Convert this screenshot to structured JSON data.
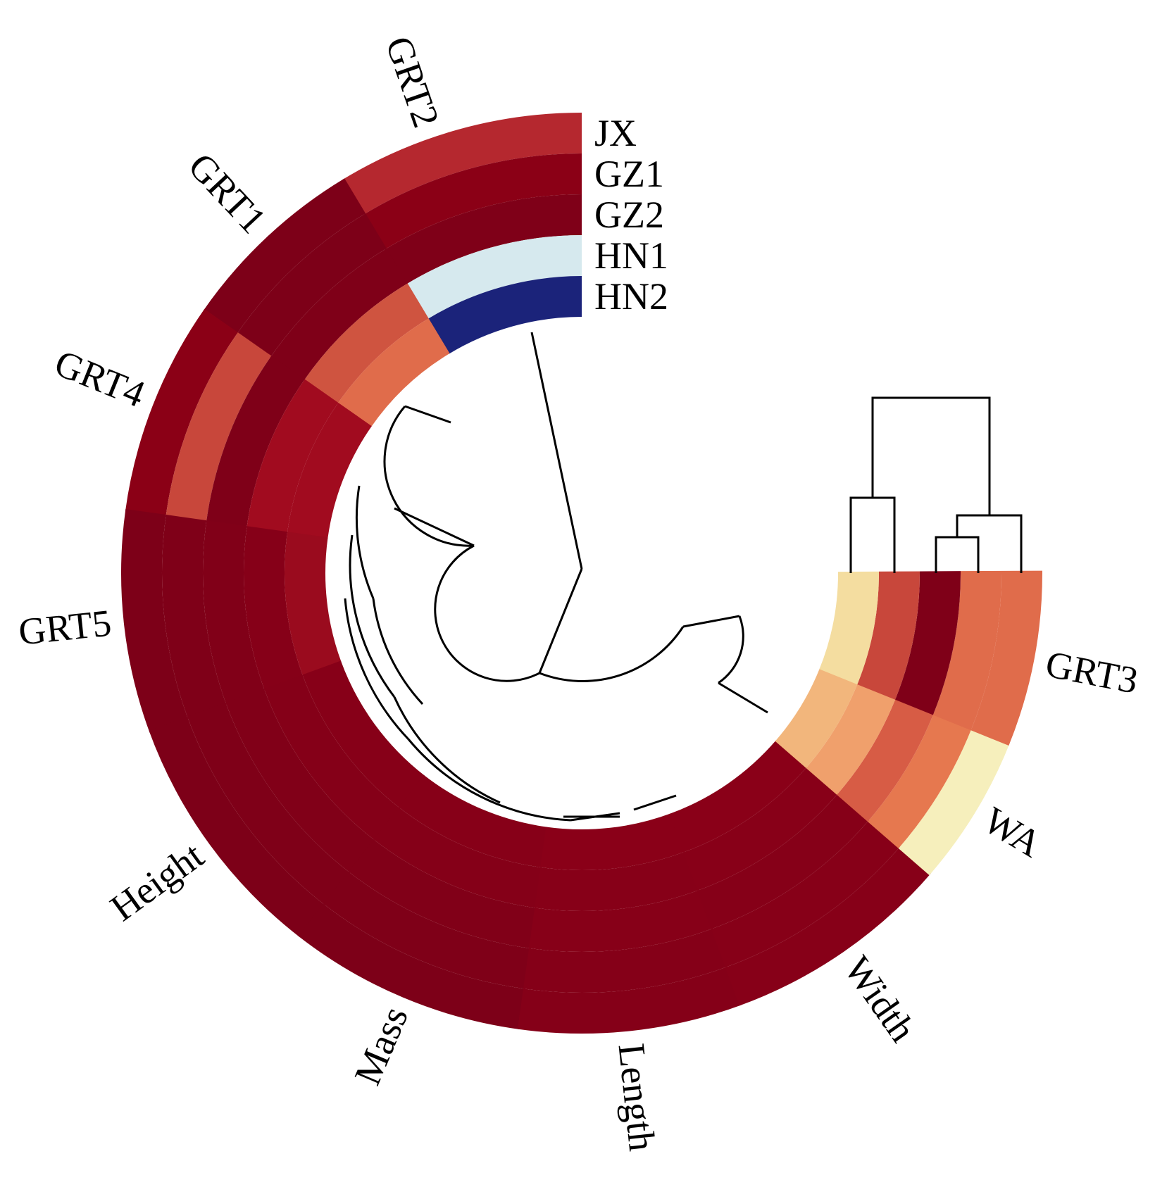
{
  "chart_data": {
    "type": "heatmap",
    "layout": "circular",
    "rows": [
      "JX",
      "GZ1",
      "GZ2",
      "HN1",
      "HN2"
    ],
    "columns": [
      "GRT2",
      "GRT1",
      "GRT4",
      "GRT5",
      "Height",
      "Mass",
      "Length",
      "Width",
      "WA",
      "GRT3"
    ],
    "colors": {
      "GRT2": [
        "#b5282f",
        "#8b0016",
        "#7f0018",
        "#d6e9ee",
        "#1b237a"
      ],
      "GRT1": [
        "#7d0018",
        "#7d0018",
        "#7f0018",
        "#cf5440",
        "#e06c4b"
      ],
      "GRT4": [
        "#8b0016",
        "#c8473b",
        "#7f0018",
        "#a10b1f",
        "#a10b1f"
      ],
      "GRT5": [
        "#7d0018",
        "#7f0018",
        "#810018",
        "#860018",
        "#9a0b1e"
      ],
      "Height": [
        "#7d0018",
        "#7f0018",
        "#810018",
        "#850018",
        "#870018"
      ],
      "Mass": [
        "#7d0018",
        "#7f0018",
        "#810018",
        "#850018",
        "#870018"
      ],
      "Length": [
        "#850018",
        "#850018",
        "#870018",
        "#870018",
        "#8a0018"
      ],
      "Width": [
        "#870018",
        "#870018",
        "#860018",
        "#880018",
        "#8a0018"
      ],
      "WA": [
        "#f6efbc",
        "#e6784f",
        "#d75c45",
        "#f0a06c",
        "#f2b67c"
      ],
      "GRT3": [
        "#e06c4b",
        "#e06c4b",
        "#7f0018",
        "#c8473b",
        "#f4dda0"
      ]
    },
    "dendrograms": [
      "columns",
      "rows"
    ]
  }
}
